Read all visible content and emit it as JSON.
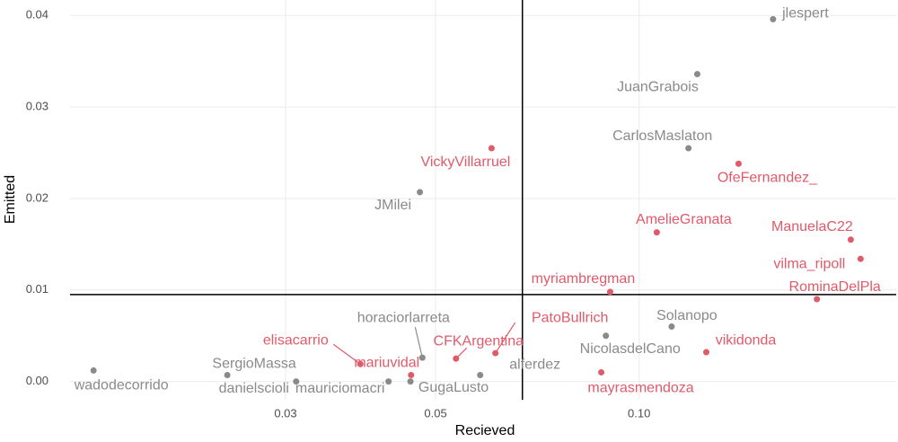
{
  "chart_data": {
    "type": "scatter",
    "x_label": "Recieved",
    "y_label": "Emitted",
    "log_x": true,
    "xlim": [
      0.0144,
      0.24
    ],
    "ylim": [
      -0.002,
      0.0417
    ],
    "xticks": [
      0.03,
      0.05,
      {
        "value": 0.1,
        "label": "0.10"
      }
    ],
    "yticks": [
      {
        "value": 0,
        "label": "0.00"
      },
      0.01,
      0.02,
      0.03,
      0.04
    ],
    "grid": true,
    "vline": 0.0672,
    "hline": 0.0095,
    "points": [
      {
        "label": "wadodecorrido",
        "x": 0.0156,
        "y": 0.0012,
        "color": "#8a8a8a"
      },
      {
        "label": "SergioMassa",
        "x": 0.0246,
        "y": 0.0007,
        "color": "#8a8a8a"
      },
      {
        "label": "danielscioli",
        "x": 0.0311,
        "y": 0.0,
        "color": "#8a8a8a"
      },
      {
        "label": "mauriciomacri",
        "x": 0.0426,
        "y": 0.0,
        "color": "#8a8a8a"
      },
      {
        "label": "GugaLusto",
        "x": 0.0459,
        "y": 0.0,
        "color": "#8a8a8a"
      },
      {
        "label": "horaciorlarreta",
        "x": 0.0478,
        "y": 0.0026,
        "color": "#8a8a8a"
      },
      {
        "label": "elisacarrio",
        "x": 0.0387,
        "y": 0.0019,
        "color": "#e05a6a"
      },
      {
        "label": "mariuvidal",
        "x": 0.046,
        "y": 0.0007,
        "color": "#e05a6a"
      },
      {
        "label": "CFKArgentina",
        "x": 0.0536,
        "y": 0.0025,
        "color": "#e05a6a"
      },
      {
        "label": "alferdez",
        "x": 0.0582,
        "y": 0.0007,
        "color": "#8a8a8a"
      },
      {
        "label": "PatoBullrich",
        "x": 0.0613,
        "y": 0.0031,
        "color": "#e05a6a"
      },
      {
        "label": "VickyVillarruel",
        "x": 0.0605,
        "y": 0.0255,
        "color": "#e05a6a"
      },
      {
        "label": "JMilei",
        "x": 0.0474,
        "y": 0.0207,
        "color": "#8a8a8a"
      },
      {
        "label": "myriambregman",
        "x": 0.0906,
        "y": 0.0098,
        "color": "#e05a6a"
      },
      {
        "label": "NicolasdelCano",
        "x": 0.0893,
        "y": 0.005,
        "color": "#8a8a8a"
      },
      {
        "label": "mayrasmendoza",
        "x": 0.0879,
        "y": 0.001,
        "color": "#e05a6a"
      },
      {
        "label": "Solanopo",
        "x": 0.1117,
        "y": 0.006,
        "color": "#8a8a8a"
      },
      {
        "label": "vikidonda",
        "x": 0.1257,
        "y": 0.0032,
        "color": "#e05a6a"
      },
      {
        "label": "AmelieGranata",
        "x": 0.1062,
        "y": 0.0163,
        "color": "#e05a6a"
      },
      {
        "label": "CarlosMaslaton",
        "x": 0.1183,
        "y": 0.0255,
        "color": "#8a8a8a"
      },
      {
        "label": "JuanGrabois",
        "x": 0.1219,
        "y": 0.0336,
        "color": "#8a8a8a"
      },
      {
        "label": "jlespert",
        "x": 0.1578,
        "y": 0.0396,
        "color": "#8a8a8a"
      },
      {
        "label": "OfeFernandez_",
        "x": 0.1403,
        "y": 0.0238,
        "color": "#e05a6a"
      },
      {
        "label": "ManuelaC22",
        "x": 0.2056,
        "y": 0.0155,
        "color": "#e05a6a"
      },
      {
        "label": "vilma_ripoll",
        "x": 0.2126,
        "y": 0.0134,
        "color": "#e05a6a"
      },
      {
        "label": "RominaDelPla",
        "x": 0.1832,
        "y": 0.009,
        "color": "#e05a6a"
      }
    ]
  }
}
